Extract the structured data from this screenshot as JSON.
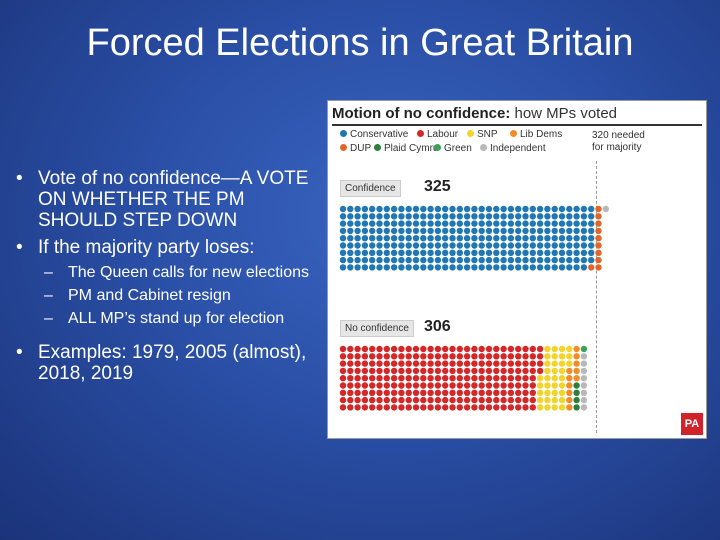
{
  "slide": {
    "title": "Forced Elections in Great Britain",
    "bullets": [
      "Vote of no confidence—A VOTE ON WHETHER THE PM SHOULD STEP DOWN",
      "If the majority party loses:"
    ],
    "sub_bullets": [
      "The Queen calls for new elections",
      "PM and Cabinet resign",
      "ALL MP’s stand up for election"
    ],
    "last_bullet": "Examples: 1979, 2005 (almost), 2018, 2019"
  },
  "chart": {
    "title_bold": "Motion of no confidence:",
    "title_rest": " how MPs voted",
    "needed_line1": "320 needed",
    "needed_line2": "for majority",
    "logo": "PA",
    "legend": [
      {
        "name": "Conservative",
        "color": "#1f77b4"
      },
      {
        "name": "Labour",
        "color": "#d62728"
      },
      {
        "name": "SNP",
        "color": "#f2d42a"
      },
      {
        "name": "Lib Dems",
        "color": "#f28c28"
      },
      {
        "name": "DUP",
        "color": "#e0662a"
      },
      {
        "name": "Plaid Cymru",
        "color": "#2a7f3a"
      },
      {
        "name": "Green",
        "color": "#3aa05a"
      },
      {
        "name": "Independent",
        "color": "#b8b8b8"
      }
    ],
    "groups": [
      {
        "label": "Confidence",
        "total": "325",
        "composition": [
          {
            "party": "Conservative",
            "count": 314,
            "color": "#1f77b4"
          },
          {
            "party": "DUP",
            "count": 10,
            "color": "#e0662a"
          },
          {
            "party": "Independent",
            "count": 1,
            "color": "#b8b8b8"
          }
        ]
      },
      {
        "label": "No confidence",
        "total": "306",
        "composition": [
          {
            "party": "Labour",
            "count": 247,
            "color": "#d62728"
          },
          {
            "party": "SNP",
            "count": 35,
            "color": "#f2d42a"
          },
          {
            "party": "Lib Dems",
            "count": 11,
            "color": "#f28c28"
          },
          {
            "party": "Plaid Cymru",
            "count": 4,
            "color": "#2a7f3a"
          },
          {
            "party": "Green",
            "count": 1,
            "color": "#3aa05a"
          },
          {
            "party": "Independent",
            "count": 8,
            "color": "#b8b8b8"
          }
        ]
      }
    ]
  }
}
